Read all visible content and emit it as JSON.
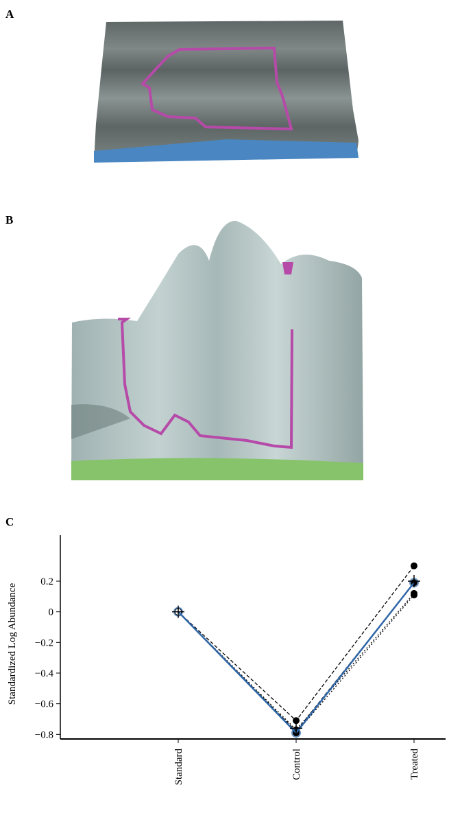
{
  "panel_labels": [
    "A",
    "B",
    "C"
  ],
  "chart_data": {
    "type": "line",
    "y_label": "Standardized Log Abundance",
    "categories": [
      "Standard",
      "Control",
      "Treated"
    ],
    "ylim": [
      -0.83,
      0.5
    ],
    "yticks": [
      {
        "value": 0.2,
        "label": "0.2"
      },
      0,
      {
        "value": -0.2,
        "label": "−0.2"
      },
      {
        "value": -0.4,
        "label": "−0.4"
      },
      {
        "value": -0.6,
        "label": "−0.6"
      },
      {
        "value": -0.8,
        "label": "−0.8"
      }
    ],
    "series": [
      {
        "color": "#000000",
        "dash": "dashed",
        "marker": "dot",
        "values": [
          0,
          -0.71,
          0.3
        ]
      },
      {
        "color": "#000000",
        "dash": "dashed",
        "marker": "dot",
        "values": [
          0,
          -0.78,
          0.19
        ]
      },
      {
        "color": "#000000",
        "dash": "dotted",
        "marker": "dot",
        "values": [
          0,
          -0.79,
          0.11
        ]
      },
      {
        "color": "#000000",
        "dash": "dotted",
        "marker": "dot",
        "values": [
          0,
          -0.77,
          0.12
        ]
      },
      {
        "color": "#2f66a8",
        "dash": "solid",
        "marker": "circle",
        "values": [
          0,
          -0.79,
          0.19
        ]
      },
      {
        "color": "#000000",
        "dash": "none",
        "marker": "cross",
        "values": [
          0,
          -0.76,
          0.2
        ]
      }
    ]
  }
}
